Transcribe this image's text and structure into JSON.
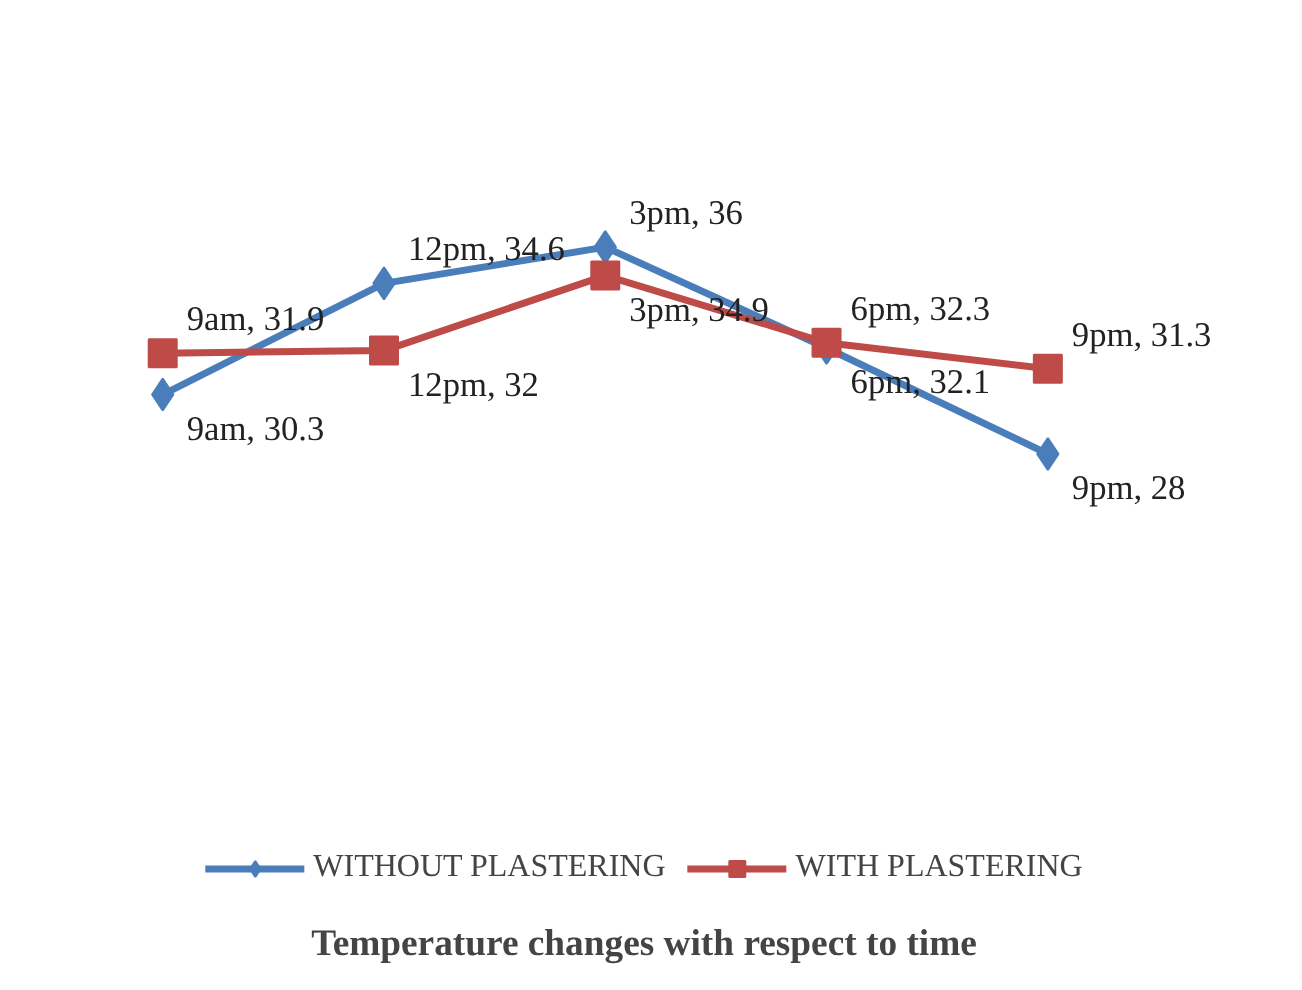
{
  "chart_data": {
    "type": "line",
    "title": "Temperature changes with respect to time",
    "categories": [
      null,
      null,
      null,
      null,
      null
    ],
    "series": [
      {
        "name": "WITHOUT PLASTERING",
        "color": "#4a7ebb",
        "marker": "diamond",
        "values": [
          30.3,
          34.6,
          36,
          32.1,
          28
        ],
        "value_labels": [
          "9am, 30.3",
          "12pm, 34.6",
          "3pm, 36",
          "6pm, 32.1",
          "9pm, 28"
        ]
      },
      {
        "name": "WITH PLASTERING",
        "color": "#be4b48",
        "marker": "square",
        "values": [
          31.9,
          32,
          34.9,
          32.3,
          31.3
        ],
        "value_labels": [
          "9am, 31.9",
          "12pm, 32",
          "3pm, 34.9",
          "6pm, 32.3",
          "9pm, 31.3"
        ]
      }
    ],
    "legend": "bottom",
    "tick_labels": false
  }
}
